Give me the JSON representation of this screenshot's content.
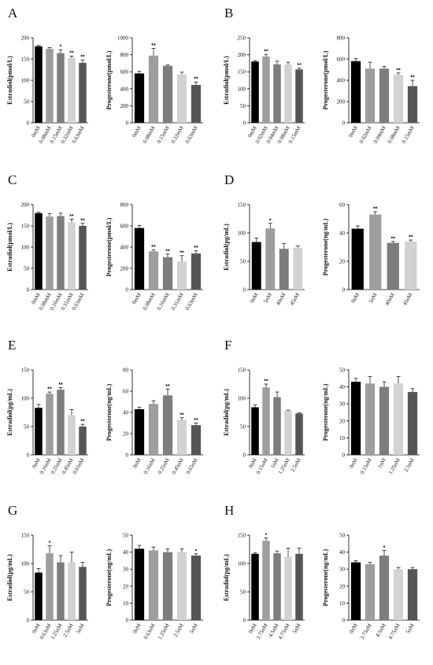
{
  "palette": {
    "5": [
      "#000000",
      "#9e9e9e",
      "#7d7d7d",
      "#d2d2d2",
      "#555555"
    ],
    "4": [
      "#000000",
      "#9e9e9e",
      "#7d7d7d",
      "#d2d2d2"
    ]
  },
  "panels": [
    {
      "label": "A",
      "charts": [
        {
          "type": "bar",
          "ylabel": "Estradiol(pmol/L)",
          "ylim": [
            0,
            200
          ],
          "yticks": [
            0,
            50,
            100,
            150,
            200
          ],
          "categories": [
            "0mM",
            "0.08mM",
            "0.15mM",
            "0.32mM",
            "0.63mM"
          ],
          "values": [
            180,
            174,
            164,
            153,
            141
          ],
          "errors": [
            2,
            3,
            8,
            4,
            7
          ],
          "sig": [
            "",
            "",
            "*",
            "**",
            "**"
          ]
        },
        {
          "type": "bar",
          "ylabel": "Progesterone(pmol/L)",
          "ylim": [
            0,
            1000
          ],
          "yticks": [
            0,
            200,
            400,
            600,
            800,
            1000
          ],
          "categories": [
            "0mM",
            "0.08mM",
            "0.15mM",
            "0.32mM",
            "0.63mM"
          ],
          "values": [
            580,
            790,
            670,
            570,
            445
          ],
          "errors": [
            25,
            85,
            10,
            25,
            35
          ],
          "sig": [
            "",
            "**",
            "",
            "",
            "**"
          ]
        }
      ]
    },
    {
      "label": "B",
      "charts": [
        {
          "type": "bar",
          "ylabel": "Estradiol(pmol/L)",
          "ylim": [
            0,
            250
          ],
          "yticks": [
            0,
            50,
            100,
            150,
            200,
            250
          ],
          "categories": [
            "0mM",
            "0.02mM",
            "0.04mM",
            "0.08mM",
            "0.15mM"
          ],
          "values": [
            180,
            195,
            172,
            172,
            157
          ],
          "errors": [
            3,
            6,
            9,
            6,
            4
          ],
          "sig": [
            "",
            "**",
            "",
            "",
            "**"
          ]
        },
        {
          "type": "bar",
          "ylabel": "Progesterone(pmol/L)",
          "ylim": [
            0,
            800
          ],
          "yticks": [
            0,
            200,
            400,
            600,
            800
          ],
          "categories": [
            "0mM",
            "0.02mM",
            "0.04mM",
            "0.08mM",
            "0.15mM"
          ],
          "values": [
            580,
            510,
            510,
            450,
            345
          ],
          "errors": [
            25,
            60,
            20,
            18,
            55
          ],
          "sig": [
            "",
            "",
            "",
            "**",
            "**"
          ]
        }
      ]
    },
    {
      "label": "C",
      "charts": [
        {
          "type": "bar",
          "ylabel": "Estradiol(pmol/L)",
          "ylim": [
            0,
            200
          ],
          "yticks": [
            0,
            50,
            100,
            150,
            200
          ],
          "categories": [
            "0mM",
            "0.08mM",
            "0.16mM",
            "0.31mM",
            "0.63mM"
          ],
          "values": [
            180,
            172,
            173,
            158,
            150
          ],
          "errors": [
            2,
            7,
            7,
            8,
            6
          ],
          "sig": [
            "",
            "",
            "",
            "**",
            "**"
          ]
        },
        {
          "type": "bar",
          "ylabel": "Progesterone(pmol/L)",
          "ylim": [
            0,
            800
          ],
          "yticks": [
            0,
            200,
            400,
            600,
            800
          ],
          "categories": [
            "0mM",
            "0.08mM",
            "0.16mM",
            "0.31mM",
            "0.63mM"
          ],
          "values": [
            580,
            360,
            305,
            265,
            340
          ],
          "errors": [
            25,
            15,
            30,
            55,
            25
          ],
          "sig": [
            "",
            "**",
            "**",
            "**",
            "**"
          ]
        }
      ]
    },
    {
      "label": "D",
      "charts": [
        {
          "type": "bar",
          "ylabel": "Estradiol(pg/mL)",
          "ylim": [
            0,
            150
          ],
          "yticks": [
            0,
            50,
            100,
            150
          ],
          "categories": [
            "0nM",
            "5nM",
            "40nM",
            "45nM"
          ],
          "values": [
            84,
            108,
            72,
            74
          ],
          "errors": [
            7,
            9,
            9,
            3
          ],
          "sig": [
            "",
            "*",
            "",
            ""
          ]
        },
        {
          "type": "bar",
          "ylabel": "Progesterone(ng/mL)",
          "ylim": [
            0,
            60
          ],
          "yticks": [
            0,
            20,
            40,
            60
          ],
          "categories": [
            "0nM",
            "5nM",
            "40nM",
            "45nM"
          ],
          "values": [
            43,
            53,
            33,
            34
          ],
          "errors": [
            2,
            2,
            1,
            1
          ],
          "sig": [
            "",
            "**",
            "**",
            "**"
          ]
        }
      ]
    },
    {
      "label": "E",
      "charts": [
        {
          "type": "bar",
          "ylabel": "Estradiol(pg/mL)",
          "ylim": [
            0,
            150
          ],
          "yticks": [
            0,
            50,
            100,
            150
          ],
          "categories": [
            "0nM",
            "0.16nM",
            "0.25nM",
            "0.45nM",
            "0.65nM"
          ],
          "values": [
            83,
            108,
            115,
            70,
            50
          ],
          "errors": [
            6,
            3,
            4,
            10,
            4
          ],
          "sig": [
            "",
            "**",
            "**",
            "",
            "**"
          ]
        },
        {
          "type": "bar",
          "ylabel": "Progesterone(ng/mL)",
          "ylim": [
            0,
            80
          ],
          "yticks": [
            0,
            20,
            40,
            60,
            80
          ],
          "categories": [
            "0nM",
            "0.16nM",
            "0.25nM",
            "0.45nM",
            "0.65nM"
          ],
          "values": [
            43,
            48,
            56,
            33,
            28
          ],
          "errors": [
            2,
            3,
            6,
            2,
            2
          ],
          "sig": [
            "",
            "",
            "**",
            "**",
            "**"
          ]
        }
      ]
    },
    {
      "label": "F",
      "charts": [
        {
          "type": "bar",
          "ylabel": "Estradiol(pg/mL)",
          "ylim": [
            0,
            150
          ],
          "yticks": [
            0,
            50,
            100,
            150
          ],
          "categories": [
            "0nM",
            "0.15nM",
            "1nM",
            "1.25nM",
            "2.5nM"
          ],
          "values": [
            84,
            119,
            102,
            78,
            73
          ],
          "errors": [
            4,
            6,
            9,
            1,
            1
          ],
          "sig": [
            "",
            "**",
            "",
            "",
            ""
          ]
        },
        {
          "type": "bar",
          "ylabel": "Progesterone(ng/mL)",
          "ylim": [
            0,
            50
          ],
          "yticks": [
            0,
            10,
            20,
            30,
            40,
            50
          ],
          "categories": [
            "0nM",
            "0.15nM",
            "1nM",
            "1.25nM",
            "2.5nM"
          ],
          "values": [
            43,
            42,
            40,
            42,
            37
          ],
          "errors": [
            2,
            4,
            3,
            4,
            2
          ],
          "sig": [
            "",
            "",
            "",
            "",
            ""
          ]
        }
      ]
    },
    {
      "label": "G",
      "charts": [
        {
          "type": "bar",
          "ylabel": "Estradiol(pg/mL)",
          "ylim": [
            0,
            150
          ],
          "yticks": [
            0,
            50,
            100,
            150
          ],
          "categories": [
            "0nM",
            "0.63nM",
            "1.25nM",
            "2.5nM",
            "5nM"
          ],
          "values": [
            84,
            118,
            102,
            102,
            94
          ],
          "errors": [
            7,
            13,
            12,
            18,
            8
          ],
          "sig": [
            "",
            "*",
            "",
            "",
            ""
          ]
        },
        {
          "type": "bar",
          "ylabel": "Progesterone(ng/mL)",
          "ylim": [
            0,
            50
          ],
          "yticks": [
            0,
            10,
            20,
            30,
            40,
            50
          ],
          "categories": [
            "0nM",
            "0.63nM",
            "1.25nM",
            "2.5nM",
            "5nM"
          ],
          "values": [
            42,
            41,
            40,
            40,
            38
          ],
          "errors": [
            2,
            2,
            2,
            2,
            1
          ],
          "sig": [
            "",
            "",
            "",
            "",
            "*"
          ]
        }
      ]
    },
    {
      "label": "H",
      "charts": [
        {
          "type": "bar",
          "ylabel": "Estradiol(pg/mL)",
          "ylim": [
            0,
            150
          ],
          "yticks": [
            0,
            50,
            100,
            150
          ],
          "categories": [
            "0nM",
            "3.75nM",
            "4.5nM",
            "4.75nM",
            "5nM"
          ],
          "values": [
            117,
            140,
            118,
            112,
            117
          ],
          "errors": [
            2,
            5,
            4,
            15,
            10
          ],
          "sig": [
            "",
            "*",
            "",
            "",
            ""
          ]
        },
        {
          "type": "bar",
          "ylabel": "Progesterone(ng/mL)",
          "ylim": [
            0,
            50
          ],
          "yticks": [
            0,
            10,
            20,
            30,
            40,
            50
          ],
          "categories": [
            "0nM",
            "3.75nM",
            "4.5nM",
            "4.75nM",
            "5nM"
          ],
          "values": [
            34,
            33,
            38,
            30,
            30
          ],
          "errors": [
            1,
            1,
            3,
            1,
            1
          ],
          "sig": [
            "",
            "",
            "*",
            "",
            ""
          ]
        }
      ]
    }
  ]
}
